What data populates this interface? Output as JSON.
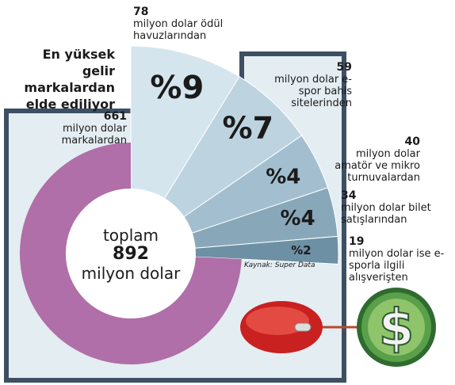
{
  "title": "En yüksek gelir markalardan elde ediliyor",
  "source": "Kaynak: Super Data",
  "total_top": "toplam",
  "total": 892,
  "total_unit": "milyon dolar",
  "chart_data": {
    "type": "pie",
    "categories": [
      "milyon dolar ödül havuzlarından",
      "milyon dolar e-spor bahis sitelerinden",
      "milyon dolar amatör ve mikro turnuvalardan",
      "milyon dolar bilet satışlarından",
      "milyon dolar ise e-sporla ilgili alışverişten",
      "milyon dolar markalardan"
    ],
    "values": [
      78,
      59,
      40,
      34,
      19,
      661
    ],
    "shares": [
      {
        "value": 9,
        "label": "%9"
      },
      {
        "value": 7,
        "label": "%7"
      },
      {
        "value": 4,
        "label": "%4"
      },
      {
        "value": 4,
        "label": "%4"
      },
      {
        "value": 2,
        "label": "%2"
      },
      null
    ],
    "colors": [
      "#d5e5ee",
      "#bdd3e0",
      "#a3bfcf",
      "#88a8ba",
      "#6d90a4",
      "#b06fa8"
    ]
  }
}
